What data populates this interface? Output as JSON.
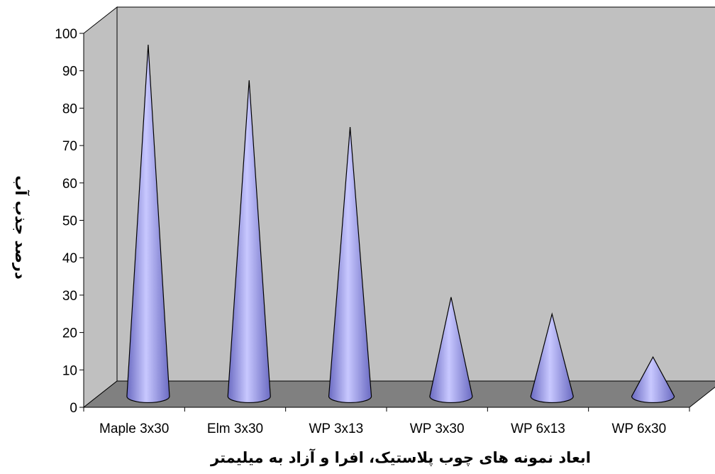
{
  "chart_data": {
    "type": "bar",
    "style": "3d-cone",
    "categories": [
      "Maple 3x30",
      "Elm 3x30",
      "WP 3x13",
      "WP 3x30",
      "WP 6x13",
      "WP 6x30"
    ],
    "values": [
      94,
      84.5,
      72,
      26.5,
      22,
      10.5
    ],
    "xlabel": "ابعاد نمونه های چوب پلاستیک، افرا و آزاد به میلیمتر",
    "ylabel": "درصد جذب آب",
    "ylim": [
      0,
      100
    ],
    "yticks": [
      0,
      10,
      20,
      30,
      40,
      50,
      60,
      70,
      80,
      90,
      100
    ],
    "grid": false,
    "legend": "none",
    "colors": {
      "wall": "#c0c0c0",
      "floor": "#808080",
      "cone_light": "#c8c8ff",
      "cone_mid": "#9a9ae8",
      "cone_dark": "#6b6bc2",
      "outline": "#000000"
    }
  }
}
